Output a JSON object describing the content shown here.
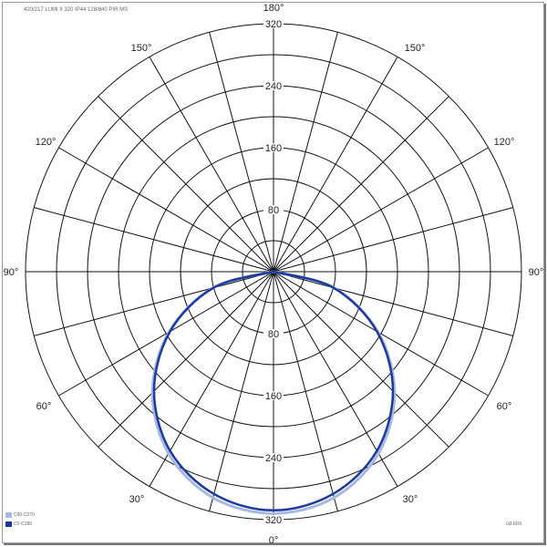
{
  "chart_data": {
    "type": "polar",
    "title": "420/217 LUMI II 320 IP44 128/840 PIR MS",
    "unit": "cd.klm",
    "radial_range": [
      0,
      320
    ],
    "radial_grid_step": 40,
    "radial_tick_labels": [
      "80",
      "160",
      "240",
      "320"
    ],
    "angular_grid_step_deg": 15,
    "angle_labels": [
      "180°",
      "150°",
      "150°",
      "120°",
      "120°",
      "90°",
      "90°",
      "60°",
      "60°",
      "30°",
      "30°",
      "0°"
    ],
    "grid": true,
    "legend_placement": "bottom-left",
    "angles_deg": [
      0,
      15,
      30,
      45,
      60,
      75,
      90
    ],
    "series": [
      {
        "name": "C90-C270",
        "color": "#a8b8e0",
        "values": [
          312,
          302,
          271,
          221,
          156,
          81,
          0
        ]
      },
      {
        "name": "C0-C180",
        "color": "#1a3aa0",
        "values": [
          308,
          297,
          267,
          218,
          154,
          80,
          0
        ]
      }
    ]
  }
}
